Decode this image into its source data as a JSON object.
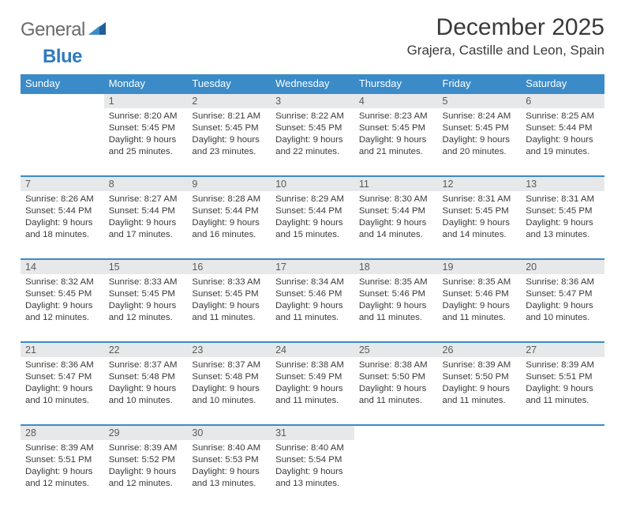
{
  "logo": {
    "text1": "General",
    "text2": "Blue"
  },
  "title": "December 2025",
  "location": "Grajera, Castille and Leon, Spain",
  "headers": [
    "Sunday",
    "Monday",
    "Tuesday",
    "Wednesday",
    "Thursday",
    "Friday",
    "Saturday"
  ],
  "colors": {
    "header_bg": "#3b8bc8",
    "header_text": "#ffffff",
    "daynum_bg": "#e7e8e9",
    "rule": "#3b8bc8",
    "body_text": "#3a3a3a",
    "logo_gray": "#6b6b6b",
    "logo_blue": "#2f7bbf",
    "page_bg": "#ffffff"
  },
  "typography": {
    "title_fontsize": 30,
    "location_fontsize": 17,
    "header_fontsize": 13,
    "daynum_fontsize": 12.5,
    "cell_fontsize": 11.4,
    "logo_fontsize": 24
  },
  "layout": {
    "cols": 7,
    "aspect_w": 792,
    "aspect_h": 612
  },
  "weeks": [
    [
      null,
      {
        "n": "1",
        "sr": "Sunrise: 8:20 AM",
        "ss": "Sunset: 5:45 PM",
        "d1": "Daylight: 9 hours",
        "d2": "and 25 minutes."
      },
      {
        "n": "2",
        "sr": "Sunrise: 8:21 AM",
        "ss": "Sunset: 5:45 PM",
        "d1": "Daylight: 9 hours",
        "d2": "and 23 minutes."
      },
      {
        "n": "3",
        "sr": "Sunrise: 8:22 AM",
        "ss": "Sunset: 5:45 PM",
        "d1": "Daylight: 9 hours",
        "d2": "and 22 minutes."
      },
      {
        "n": "4",
        "sr": "Sunrise: 8:23 AM",
        "ss": "Sunset: 5:45 PM",
        "d1": "Daylight: 9 hours",
        "d2": "and 21 minutes."
      },
      {
        "n": "5",
        "sr": "Sunrise: 8:24 AM",
        "ss": "Sunset: 5:45 PM",
        "d1": "Daylight: 9 hours",
        "d2": "and 20 minutes."
      },
      {
        "n": "6",
        "sr": "Sunrise: 8:25 AM",
        "ss": "Sunset: 5:44 PM",
        "d1": "Daylight: 9 hours",
        "d2": "and 19 minutes."
      }
    ],
    [
      {
        "n": "7",
        "sr": "Sunrise: 8:26 AM",
        "ss": "Sunset: 5:44 PM",
        "d1": "Daylight: 9 hours",
        "d2": "and 18 minutes."
      },
      {
        "n": "8",
        "sr": "Sunrise: 8:27 AM",
        "ss": "Sunset: 5:44 PM",
        "d1": "Daylight: 9 hours",
        "d2": "and 17 minutes."
      },
      {
        "n": "9",
        "sr": "Sunrise: 8:28 AM",
        "ss": "Sunset: 5:44 PM",
        "d1": "Daylight: 9 hours",
        "d2": "and 16 minutes."
      },
      {
        "n": "10",
        "sr": "Sunrise: 8:29 AM",
        "ss": "Sunset: 5:44 PM",
        "d1": "Daylight: 9 hours",
        "d2": "and 15 minutes."
      },
      {
        "n": "11",
        "sr": "Sunrise: 8:30 AM",
        "ss": "Sunset: 5:44 PM",
        "d1": "Daylight: 9 hours",
        "d2": "and 14 minutes."
      },
      {
        "n": "12",
        "sr": "Sunrise: 8:31 AM",
        "ss": "Sunset: 5:45 PM",
        "d1": "Daylight: 9 hours",
        "d2": "and 14 minutes."
      },
      {
        "n": "13",
        "sr": "Sunrise: 8:31 AM",
        "ss": "Sunset: 5:45 PM",
        "d1": "Daylight: 9 hours",
        "d2": "and 13 minutes."
      }
    ],
    [
      {
        "n": "14",
        "sr": "Sunrise: 8:32 AM",
        "ss": "Sunset: 5:45 PM",
        "d1": "Daylight: 9 hours",
        "d2": "and 12 minutes."
      },
      {
        "n": "15",
        "sr": "Sunrise: 8:33 AM",
        "ss": "Sunset: 5:45 PM",
        "d1": "Daylight: 9 hours",
        "d2": "and 12 minutes."
      },
      {
        "n": "16",
        "sr": "Sunrise: 8:33 AM",
        "ss": "Sunset: 5:45 PM",
        "d1": "Daylight: 9 hours",
        "d2": "and 11 minutes."
      },
      {
        "n": "17",
        "sr": "Sunrise: 8:34 AM",
        "ss": "Sunset: 5:46 PM",
        "d1": "Daylight: 9 hours",
        "d2": "and 11 minutes."
      },
      {
        "n": "18",
        "sr": "Sunrise: 8:35 AM",
        "ss": "Sunset: 5:46 PM",
        "d1": "Daylight: 9 hours",
        "d2": "and 11 minutes."
      },
      {
        "n": "19",
        "sr": "Sunrise: 8:35 AM",
        "ss": "Sunset: 5:46 PM",
        "d1": "Daylight: 9 hours",
        "d2": "and 11 minutes."
      },
      {
        "n": "20",
        "sr": "Sunrise: 8:36 AM",
        "ss": "Sunset: 5:47 PM",
        "d1": "Daylight: 9 hours",
        "d2": "and 10 minutes."
      }
    ],
    [
      {
        "n": "21",
        "sr": "Sunrise: 8:36 AM",
        "ss": "Sunset: 5:47 PM",
        "d1": "Daylight: 9 hours",
        "d2": "and 10 minutes."
      },
      {
        "n": "22",
        "sr": "Sunrise: 8:37 AM",
        "ss": "Sunset: 5:48 PM",
        "d1": "Daylight: 9 hours",
        "d2": "and 10 minutes."
      },
      {
        "n": "23",
        "sr": "Sunrise: 8:37 AM",
        "ss": "Sunset: 5:48 PM",
        "d1": "Daylight: 9 hours",
        "d2": "and 10 minutes."
      },
      {
        "n": "24",
        "sr": "Sunrise: 8:38 AM",
        "ss": "Sunset: 5:49 PM",
        "d1": "Daylight: 9 hours",
        "d2": "and 11 minutes."
      },
      {
        "n": "25",
        "sr": "Sunrise: 8:38 AM",
        "ss": "Sunset: 5:50 PM",
        "d1": "Daylight: 9 hours",
        "d2": "and 11 minutes."
      },
      {
        "n": "26",
        "sr": "Sunrise: 8:39 AM",
        "ss": "Sunset: 5:50 PM",
        "d1": "Daylight: 9 hours",
        "d2": "and 11 minutes."
      },
      {
        "n": "27",
        "sr": "Sunrise: 8:39 AM",
        "ss": "Sunset: 5:51 PM",
        "d1": "Daylight: 9 hours",
        "d2": "and 11 minutes."
      }
    ],
    [
      {
        "n": "28",
        "sr": "Sunrise: 8:39 AM",
        "ss": "Sunset: 5:51 PM",
        "d1": "Daylight: 9 hours",
        "d2": "and 12 minutes."
      },
      {
        "n": "29",
        "sr": "Sunrise: 8:39 AM",
        "ss": "Sunset: 5:52 PM",
        "d1": "Daylight: 9 hours",
        "d2": "and 12 minutes."
      },
      {
        "n": "30",
        "sr": "Sunrise: 8:40 AM",
        "ss": "Sunset: 5:53 PM",
        "d1": "Daylight: 9 hours",
        "d2": "and 13 minutes."
      },
      {
        "n": "31",
        "sr": "Sunrise: 8:40 AM",
        "ss": "Sunset: 5:54 PM",
        "d1": "Daylight: 9 hours",
        "d2": "and 13 minutes."
      },
      null,
      null,
      null
    ]
  ]
}
